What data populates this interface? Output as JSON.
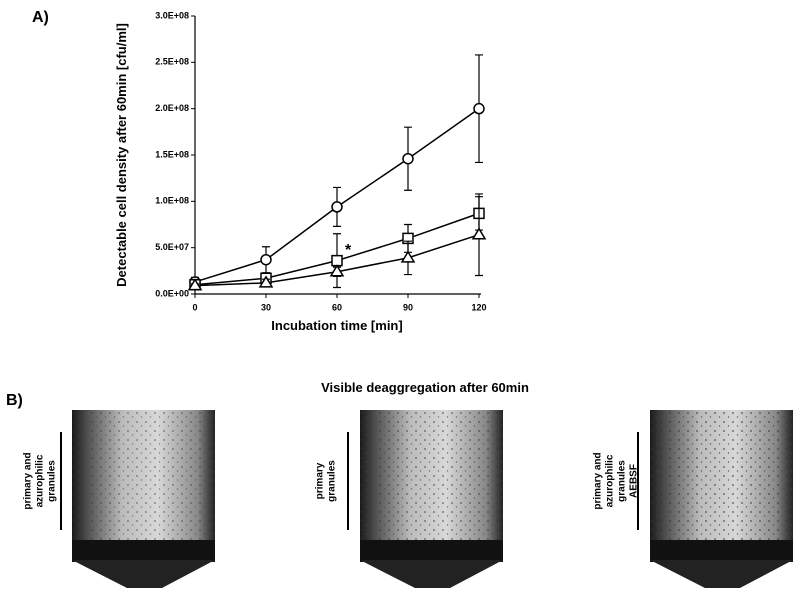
{
  "chart_data": {
    "type": "line",
    "panel_label": "A)",
    "x_label": "Incubation time [min]",
    "y_label": "Detectable cell density after 60min [cfu/ml]",
    "x": [
      0,
      30,
      60,
      90,
      120
    ],
    "xlim": [
      0,
      120
    ],
    "xticks": [
      0,
      30,
      60,
      90,
      120
    ],
    "ylim": [
      0,
      300000000
    ],
    "yticks": [
      {
        "value": 0,
        "label": "0.0E+00"
      },
      {
        "value": 50000000,
        "label": "5.0E+07"
      },
      {
        "value": 100000000,
        "label": "1.0E+08"
      },
      {
        "value": 150000000,
        "label": "1.5E+08"
      },
      {
        "value": 200000000,
        "label": "2.0E+08"
      },
      {
        "value": 250000000,
        "label": "2.5E+08"
      },
      {
        "value": 300000000,
        "label": "3.0E+08"
      }
    ],
    "series": [
      {
        "marker": "circle",
        "color": "#000000",
        "values": [
          13000000,
          37000000,
          94000000,
          146000000,
          200000000
        ],
        "errors": [
          5000000,
          14000000,
          21000000,
          34000000,
          58000000
        ]
      },
      {
        "marker": "square",
        "color": "#000000",
        "values": [
          10000000,
          17000000,
          36000000,
          60000000,
          87000000
        ],
        "errors": [
          3000000,
          4000000,
          29000000,
          15000000,
          18000000
        ]
      },
      {
        "marker": "triangle",
        "color": "#000000",
        "values": [
          9000000,
          12000000,
          24000000,
          39000000,
          64000000
        ],
        "errors": [
          2000000,
          4000000,
          5000000,
          18000000,
          44000000
        ]
      }
    ],
    "annotations": [
      {
        "text": "*",
        "x": 60,
        "y": 42000000
      }
    ]
  },
  "panel_b": {
    "label": "B)",
    "title": "Visible deaggregation after 60min",
    "images": [
      {
        "lines": [
          "primary and",
          "azurophilic",
          "granules"
        ]
      },
      {
        "lines": [
          "primary",
          "granules"
        ]
      },
      {
        "lines": [
          "primary and",
          "azurophilic",
          "granules",
          "AEBSF"
        ]
      }
    ]
  }
}
